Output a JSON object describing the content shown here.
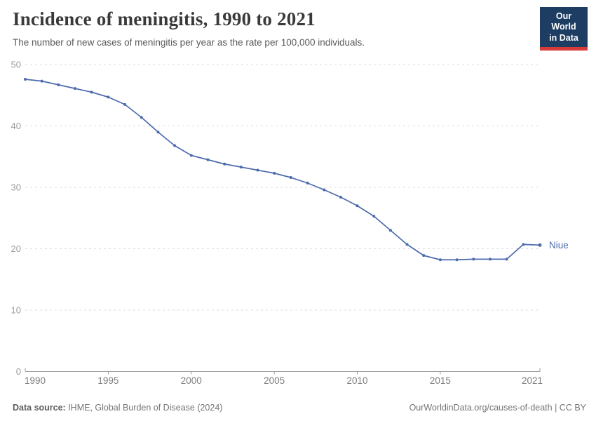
{
  "header": {
    "title": "Incidence of meningitis, 1990 to 2021",
    "subtitle": "The number of new cases of meningitis per year as the rate per 100,000 individuals.",
    "logo": {
      "line1": "Our World",
      "line2": "in Data"
    }
  },
  "chart_data": {
    "type": "line",
    "title": "Incidence of meningitis, 1990 to 2021",
    "xlabel": "",
    "ylabel": "",
    "xlim": [
      1990,
      2021
    ],
    "ylim": [
      0,
      50
    ],
    "grid": "horizontal-dashed",
    "legend_position": "end-of-line-label",
    "xticks": [
      1990,
      1995,
      2000,
      2005,
      2010,
      2015,
      2021
    ],
    "yticks": [
      0,
      10,
      20,
      30,
      40,
      50
    ],
    "x": [
      1990,
      1991,
      1992,
      1993,
      1994,
      1995,
      1996,
      1997,
      1998,
      1999,
      2000,
      2001,
      2002,
      2003,
      2004,
      2005,
      2006,
      2007,
      2008,
      2009,
      2010,
      2011,
      2012,
      2013,
      2014,
      2015,
      2016,
      2017,
      2018,
      2019,
      2020,
      2021
    ],
    "series": [
      {
        "name": "Niue",
        "color": "#4c6bac",
        "values": [
          47.6,
          47.3,
          46.7,
          46.1,
          45.5,
          44.7,
          43.5,
          41.4,
          39.0,
          36.8,
          35.2,
          34.5,
          33.8,
          33.3,
          32.8,
          32.3,
          31.6,
          30.7,
          29.6,
          28.4,
          27.0,
          25.3,
          23.0,
          20.7,
          18.9,
          18.2,
          18.2,
          18.3,
          18.3,
          18.3,
          20.7,
          20.6
        ]
      }
    ]
  },
  "footer": {
    "source_label": "Data source:",
    "source_text": " IHME, Global Burden of Disease (2024)",
    "link_text": "OurWorldinData.org/causes-of-death | CC BY"
  },
  "colors": {
    "line": "#4c6bac",
    "gridline": "#dcdcdc",
    "axis": "#9c9c9c",
    "ytick_label": "#9b9b9b",
    "xtick_label": "#7d7d7d",
    "logo_bg": "#1d3d63",
    "logo_bar": "#d93a3a"
  }
}
